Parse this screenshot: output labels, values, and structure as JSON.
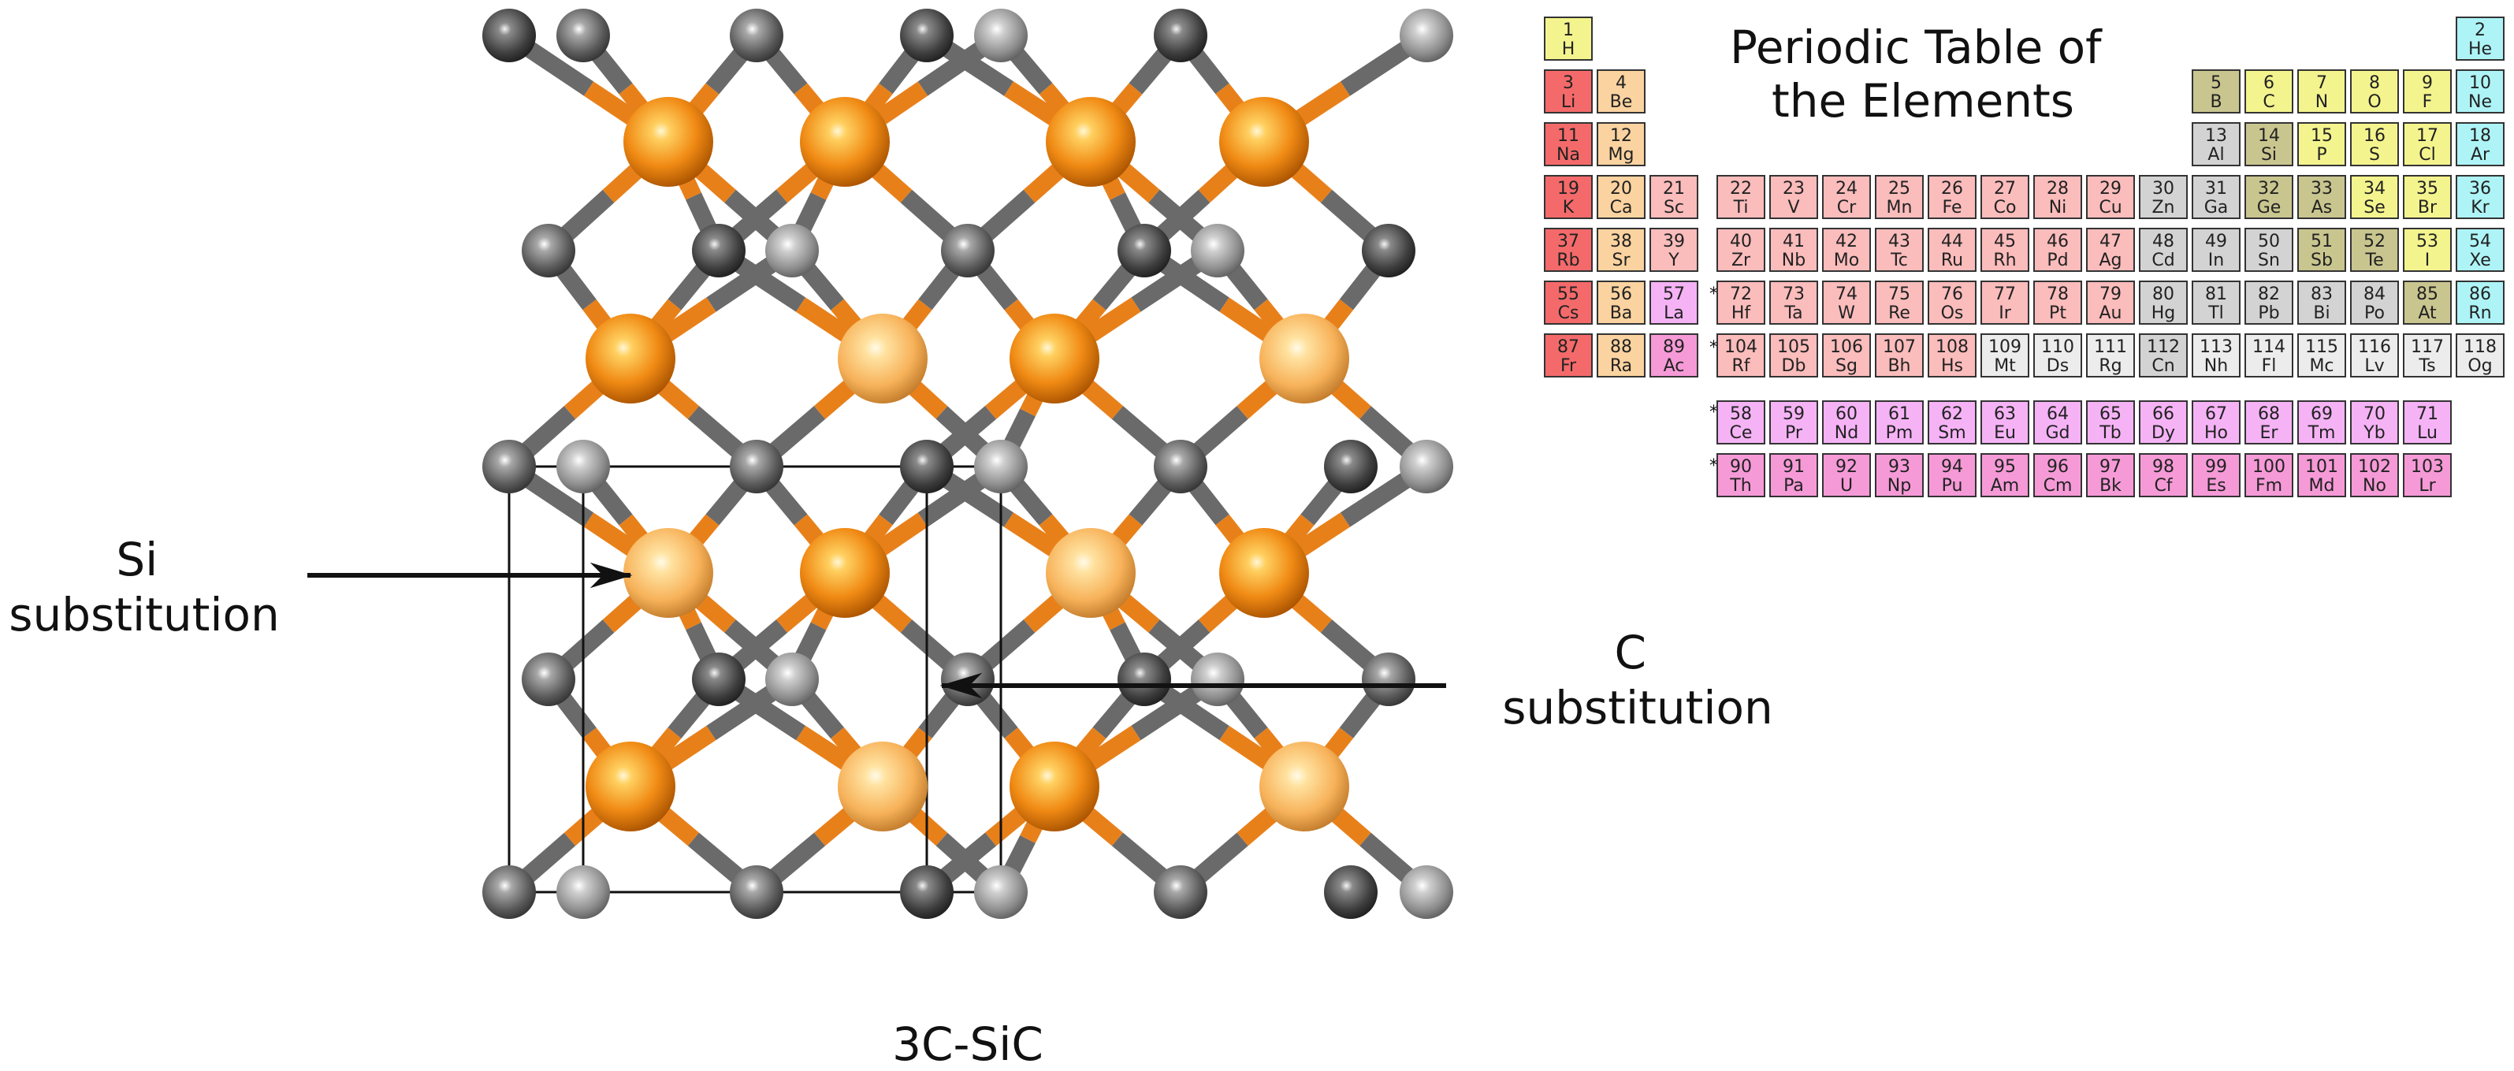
{
  "labels": {
    "si_substitution": [
      "Si",
      "substitution"
    ],
    "c_substitution": [
      "C",
      "substitution"
    ],
    "structure_name": "3C-SiC"
  },
  "periodic_table": {
    "title": [
      "Periodic Table of",
      "the Elements"
    ],
    "lanthanide_marker": "*",
    "actinide_marker": "* *",
    "category_colors": {
      "alkali": "#f46a6a",
      "alkaline": "#fbd3a0",
      "lanth": "#f5b3f5",
      "actin": "#f59ad7",
      "transition": "#fbbcbc",
      "post": "#d3d3d3",
      "metalloid": "#c9c58f",
      "nonmetal": "#f4f48f",
      "noble": "#aef4f7",
      "unknown": "#ececec"
    },
    "elements": [
      {
        "n": "1",
        "s": "H",
        "c": "nonmetal"
      },
      {
        "n": "2",
        "s": "He",
        "c": "noble"
      },
      {
        "n": "3",
        "s": "Li",
        "c": "alkali"
      },
      {
        "n": "4",
        "s": "Be",
        "c": "alkaline"
      },
      {
        "n": "5",
        "s": "B",
        "c": "metalloid"
      },
      {
        "n": "6",
        "s": "C",
        "c": "nonmetal"
      },
      {
        "n": "7",
        "s": "N",
        "c": "nonmetal"
      },
      {
        "n": "8",
        "s": "O",
        "c": "nonmetal"
      },
      {
        "n": "9",
        "s": "F",
        "c": "nonmetal"
      },
      {
        "n": "10",
        "s": "Ne",
        "c": "noble"
      },
      {
        "n": "11",
        "s": "Na",
        "c": "alkali"
      },
      {
        "n": "12",
        "s": "Mg",
        "c": "alkaline"
      },
      {
        "n": "13",
        "s": "Al",
        "c": "post"
      },
      {
        "n": "14",
        "s": "Si",
        "c": "metalloid"
      },
      {
        "n": "15",
        "s": "P",
        "c": "nonmetal"
      },
      {
        "n": "16",
        "s": "S",
        "c": "nonmetal"
      },
      {
        "n": "17",
        "s": "Cl",
        "c": "nonmetal"
      },
      {
        "n": "18",
        "s": "Ar",
        "c": "noble"
      },
      {
        "n": "19",
        "s": "K",
        "c": "alkali"
      },
      {
        "n": "20",
        "s": "Ca",
        "c": "alkaline"
      },
      {
        "n": "21",
        "s": "Sc",
        "c": "transition"
      },
      {
        "n": "22",
        "s": "Ti",
        "c": "transition"
      },
      {
        "n": "23",
        "s": "V",
        "c": "transition"
      },
      {
        "n": "24",
        "s": "Cr",
        "c": "transition"
      },
      {
        "n": "25",
        "s": "Mn",
        "c": "transition"
      },
      {
        "n": "26",
        "s": "Fe",
        "c": "transition"
      },
      {
        "n": "27",
        "s": "Co",
        "c": "transition"
      },
      {
        "n": "28",
        "s": "Ni",
        "c": "transition"
      },
      {
        "n": "29",
        "s": "Cu",
        "c": "transition"
      },
      {
        "n": "30",
        "s": "Zn",
        "c": "post"
      },
      {
        "n": "31",
        "s": "Ga",
        "c": "post"
      },
      {
        "n": "32",
        "s": "Ge",
        "c": "metalloid"
      },
      {
        "n": "33",
        "s": "As",
        "c": "metalloid"
      },
      {
        "n": "34",
        "s": "Se",
        "c": "nonmetal"
      },
      {
        "n": "35",
        "s": "Br",
        "c": "nonmetal"
      },
      {
        "n": "36",
        "s": "Kr",
        "c": "noble"
      },
      {
        "n": "37",
        "s": "Rb",
        "c": "alkali"
      },
      {
        "n": "38",
        "s": "Sr",
        "c": "alkaline"
      },
      {
        "n": "39",
        "s": "Y",
        "c": "transition"
      },
      {
        "n": "40",
        "s": "Zr",
        "c": "transition"
      },
      {
        "n": "41",
        "s": "Nb",
        "c": "transition"
      },
      {
        "n": "42",
        "s": "Mo",
        "c": "transition"
      },
      {
        "n": "43",
        "s": "Tc",
        "c": "transition"
      },
      {
        "n": "44",
        "s": "Ru",
        "c": "transition"
      },
      {
        "n": "45",
        "s": "Rh",
        "c": "transition"
      },
      {
        "n": "46",
        "s": "Pd",
        "c": "transition"
      },
      {
        "n": "47",
        "s": "Ag",
        "c": "transition"
      },
      {
        "n": "48",
        "s": "Cd",
        "c": "post"
      },
      {
        "n": "49",
        "s": "In",
        "c": "post"
      },
      {
        "n": "50",
        "s": "Sn",
        "c": "post"
      },
      {
        "n": "51",
        "s": "Sb",
        "c": "metalloid"
      },
      {
        "n": "52",
        "s": "Te",
        "c": "metalloid"
      },
      {
        "n": "53",
        "s": "I",
        "c": "nonmetal"
      },
      {
        "n": "54",
        "s": "Xe",
        "c": "noble"
      },
      {
        "n": "55",
        "s": "Cs",
        "c": "alkali"
      },
      {
        "n": "56",
        "s": "Ba",
        "c": "alkaline"
      },
      {
        "n": "57",
        "s": "La",
        "c": "lanth"
      },
      {
        "n": "72",
        "s": "Hf",
        "c": "transition"
      },
      {
        "n": "73",
        "s": "Ta",
        "c": "transition"
      },
      {
        "n": "74",
        "s": "W",
        "c": "transition"
      },
      {
        "n": "75",
        "s": "Re",
        "c": "transition"
      },
      {
        "n": "76",
        "s": "Os",
        "c": "transition"
      },
      {
        "n": "77",
        "s": "Ir",
        "c": "transition"
      },
      {
        "n": "78",
        "s": "Pt",
        "c": "transition"
      },
      {
        "n": "79",
        "s": "Au",
        "c": "transition"
      },
      {
        "n": "80",
        "s": "Hg",
        "c": "post"
      },
      {
        "n": "81",
        "s": "Tl",
        "c": "post"
      },
      {
        "n": "82",
        "s": "Pb",
        "c": "post"
      },
      {
        "n": "83",
        "s": "Bi",
        "c": "post"
      },
      {
        "n": "84",
        "s": "Po",
        "c": "post"
      },
      {
        "n": "85",
        "s": "At",
        "c": "metalloid"
      },
      {
        "n": "86",
        "s": "Rn",
        "c": "noble"
      },
      {
        "n": "87",
        "s": "Fr",
        "c": "alkali"
      },
      {
        "n": "88",
        "s": "Ra",
        "c": "alkaline"
      },
      {
        "n": "89",
        "s": "Ac",
        "c": "actin"
      },
      {
        "n": "104",
        "s": "Rf",
        "c": "transition"
      },
      {
        "n": "105",
        "s": "Db",
        "c": "transition"
      },
      {
        "n": "106",
        "s": "Sg",
        "c": "transition"
      },
      {
        "n": "107",
        "s": "Bh",
        "c": "transition"
      },
      {
        "n": "108",
        "s": "Hs",
        "c": "transition"
      },
      {
        "n": "109",
        "s": "Mt",
        "c": "unknown"
      },
      {
        "n": "110",
        "s": "Ds",
        "c": "unknown"
      },
      {
        "n": "111",
        "s": "Rg",
        "c": "unknown"
      },
      {
        "n": "112",
        "s": "Cn",
        "c": "post"
      },
      {
        "n": "113",
        "s": "Nh",
        "c": "unknown"
      },
      {
        "n": "114",
        "s": "Fl",
        "c": "unknown"
      },
      {
        "n": "115",
        "s": "Mc",
        "c": "unknown"
      },
      {
        "n": "116",
        "s": "Lv",
        "c": "unknown"
      },
      {
        "n": "117",
        "s": "Ts",
        "c": "unknown"
      },
      {
        "n": "118",
        "s": "Og",
        "c": "unknown"
      },
      {
        "n": "58",
        "s": "Ce",
        "c": "lanth"
      },
      {
        "n": "59",
        "s": "Pr",
        "c": "lanth"
      },
      {
        "n": "60",
        "s": "Nd",
        "c": "lanth"
      },
      {
        "n": "61",
        "s": "Pm",
        "c": "lanth"
      },
      {
        "n": "62",
        "s": "Sm",
        "c": "lanth"
      },
      {
        "n": "63",
        "s": "Eu",
        "c": "lanth"
      },
      {
        "n": "64",
        "s": "Gd",
        "c": "lanth"
      },
      {
        "n": "65",
        "s": "Tb",
        "c": "lanth"
      },
      {
        "n": "66",
        "s": "Dy",
        "c": "lanth"
      },
      {
        "n": "67",
        "s": "Ho",
        "c": "lanth"
      },
      {
        "n": "68",
        "s": "Er",
        "c": "lanth"
      },
      {
        "n": "69",
        "s": "Tm",
        "c": "lanth"
      },
      {
        "n": "70",
        "s": "Yb",
        "c": "lanth"
      },
      {
        "n": "71",
        "s": "Lu",
        "c": "lanth"
      },
      {
        "n": "90",
        "s": "Th",
        "c": "actin"
      },
      {
        "n": "91",
        "s": "Pa",
        "c": "actin"
      },
      {
        "n": "92",
        "s": "U",
        "c": "actin"
      },
      {
        "n": "93",
        "s": "Np",
        "c": "actin"
      },
      {
        "n": "94",
        "s": "Pu",
        "c": "actin"
      },
      {
        "n": "95",
        "s": "Am",
        "c": "actin"
      },
      {
        "n": "96",
        "s": "Cm",
        "c": "actin"
      },
      {
        "n": "97",
        "s": "Bk",
        "c": "actin"
      },
      {
        "n": "98",
        "s": "Cf",
        "c": "actin"
      },
      {
        "n": "99",
        "s": "Es",
        "c": "actin"
      },
      {
        "n": "100",
        "s": "Fm",
        "c": "actin"
      },
      {
        "n": "101",
        "s": "Md",
        "c": "actin"
      },
      {
        "n": "102",
        "s": "No",
        "c": "actin"
      },
      {
        "n": "103",
        "s": "Lr",
        "c": "actin"
      }
    ]
  },
  "colors": {
    "si_atom": "#f0891a",
    "c_atom": "#707070",
    "si_bond": "#e8801a",
    "c_bond": "#6a6a6a"
  }
}
